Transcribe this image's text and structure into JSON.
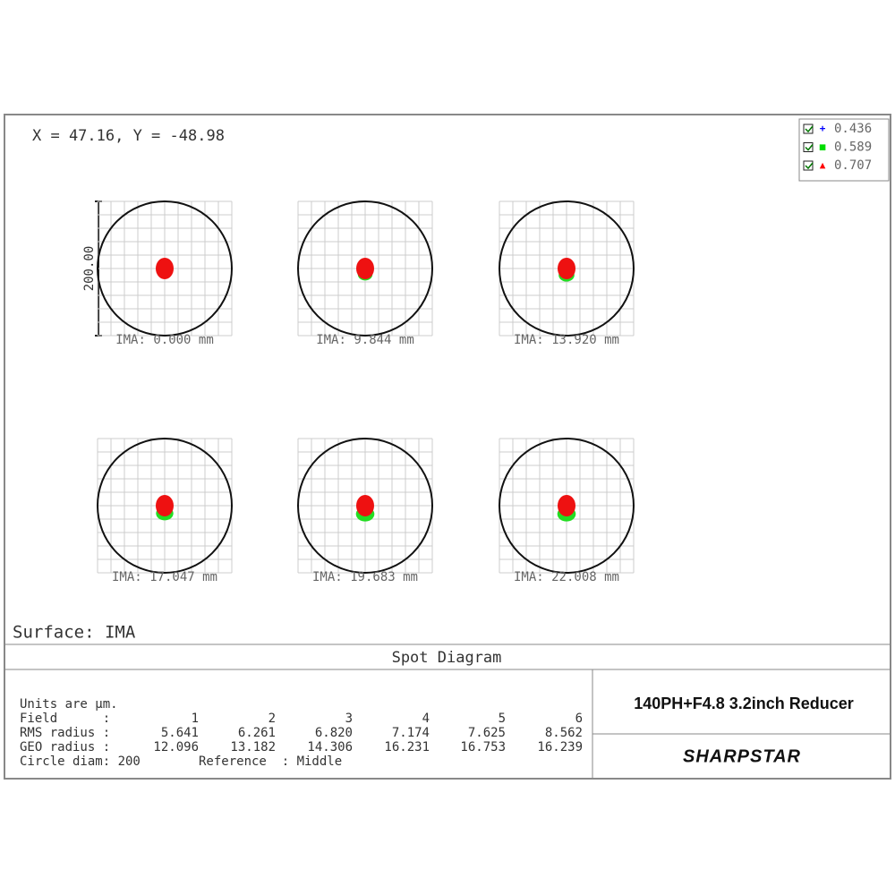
{
  "coordinates": "X = 47.16, Y = -48.98",
  "legend": [
    {
      "marker": "+",
      "label": "0.436",
      "color": "#0000ff"
    },
    {
      "marker": "■",
      "label": "0.589",
      "color": "#00dd00"
    },
    {
      "marker": "▲",
      "label": "0.707",
      "color": "#ff0000"
    }
  ],
  "scale_label": "200.00",
  "panels": [
    {
      "label": "IMA: 0.000 mm"
    },
    {
      "label": "IMA: 9.844 mm"
    },
    {
      "label": "IMA: 13.920 mm"
    },
    {
      "label": "IMA: 17.047 mm"
    },
    {
      "label": "IMA: 19.683 mm"
    },
    {
      "label": "IMA: 22.008 mm"
    }
  ],
  "surface": "Surface: IMA",
  "title": "Spot Diagram",
  "info": {
    "units": "Units are µm.",
    "field_label": "Field      :",
    "fields": [
      1,
      2,
      3,
      4,
      5,
      6
    ],
    "rms_label": "RMS radius :",
    "rms": [
      "5.641",
      "6.261",
      "6.820",
      "7.174",
      "7.625",
      "8.562"
    ],
    "geo_label": "GEO radius :",
    "geo": [
      "12.096",
      "13.182",
      "14.306",
      "16.231",
      "16.753",
      "16.239"
    ],
    "circle": "Circle diam: 200",
    "reference": "Reference  : Middle"
  },
  "lens": "140PH+F4.8 3.2inch Reducer",
  "brand": "SHARPSTAR"
}
